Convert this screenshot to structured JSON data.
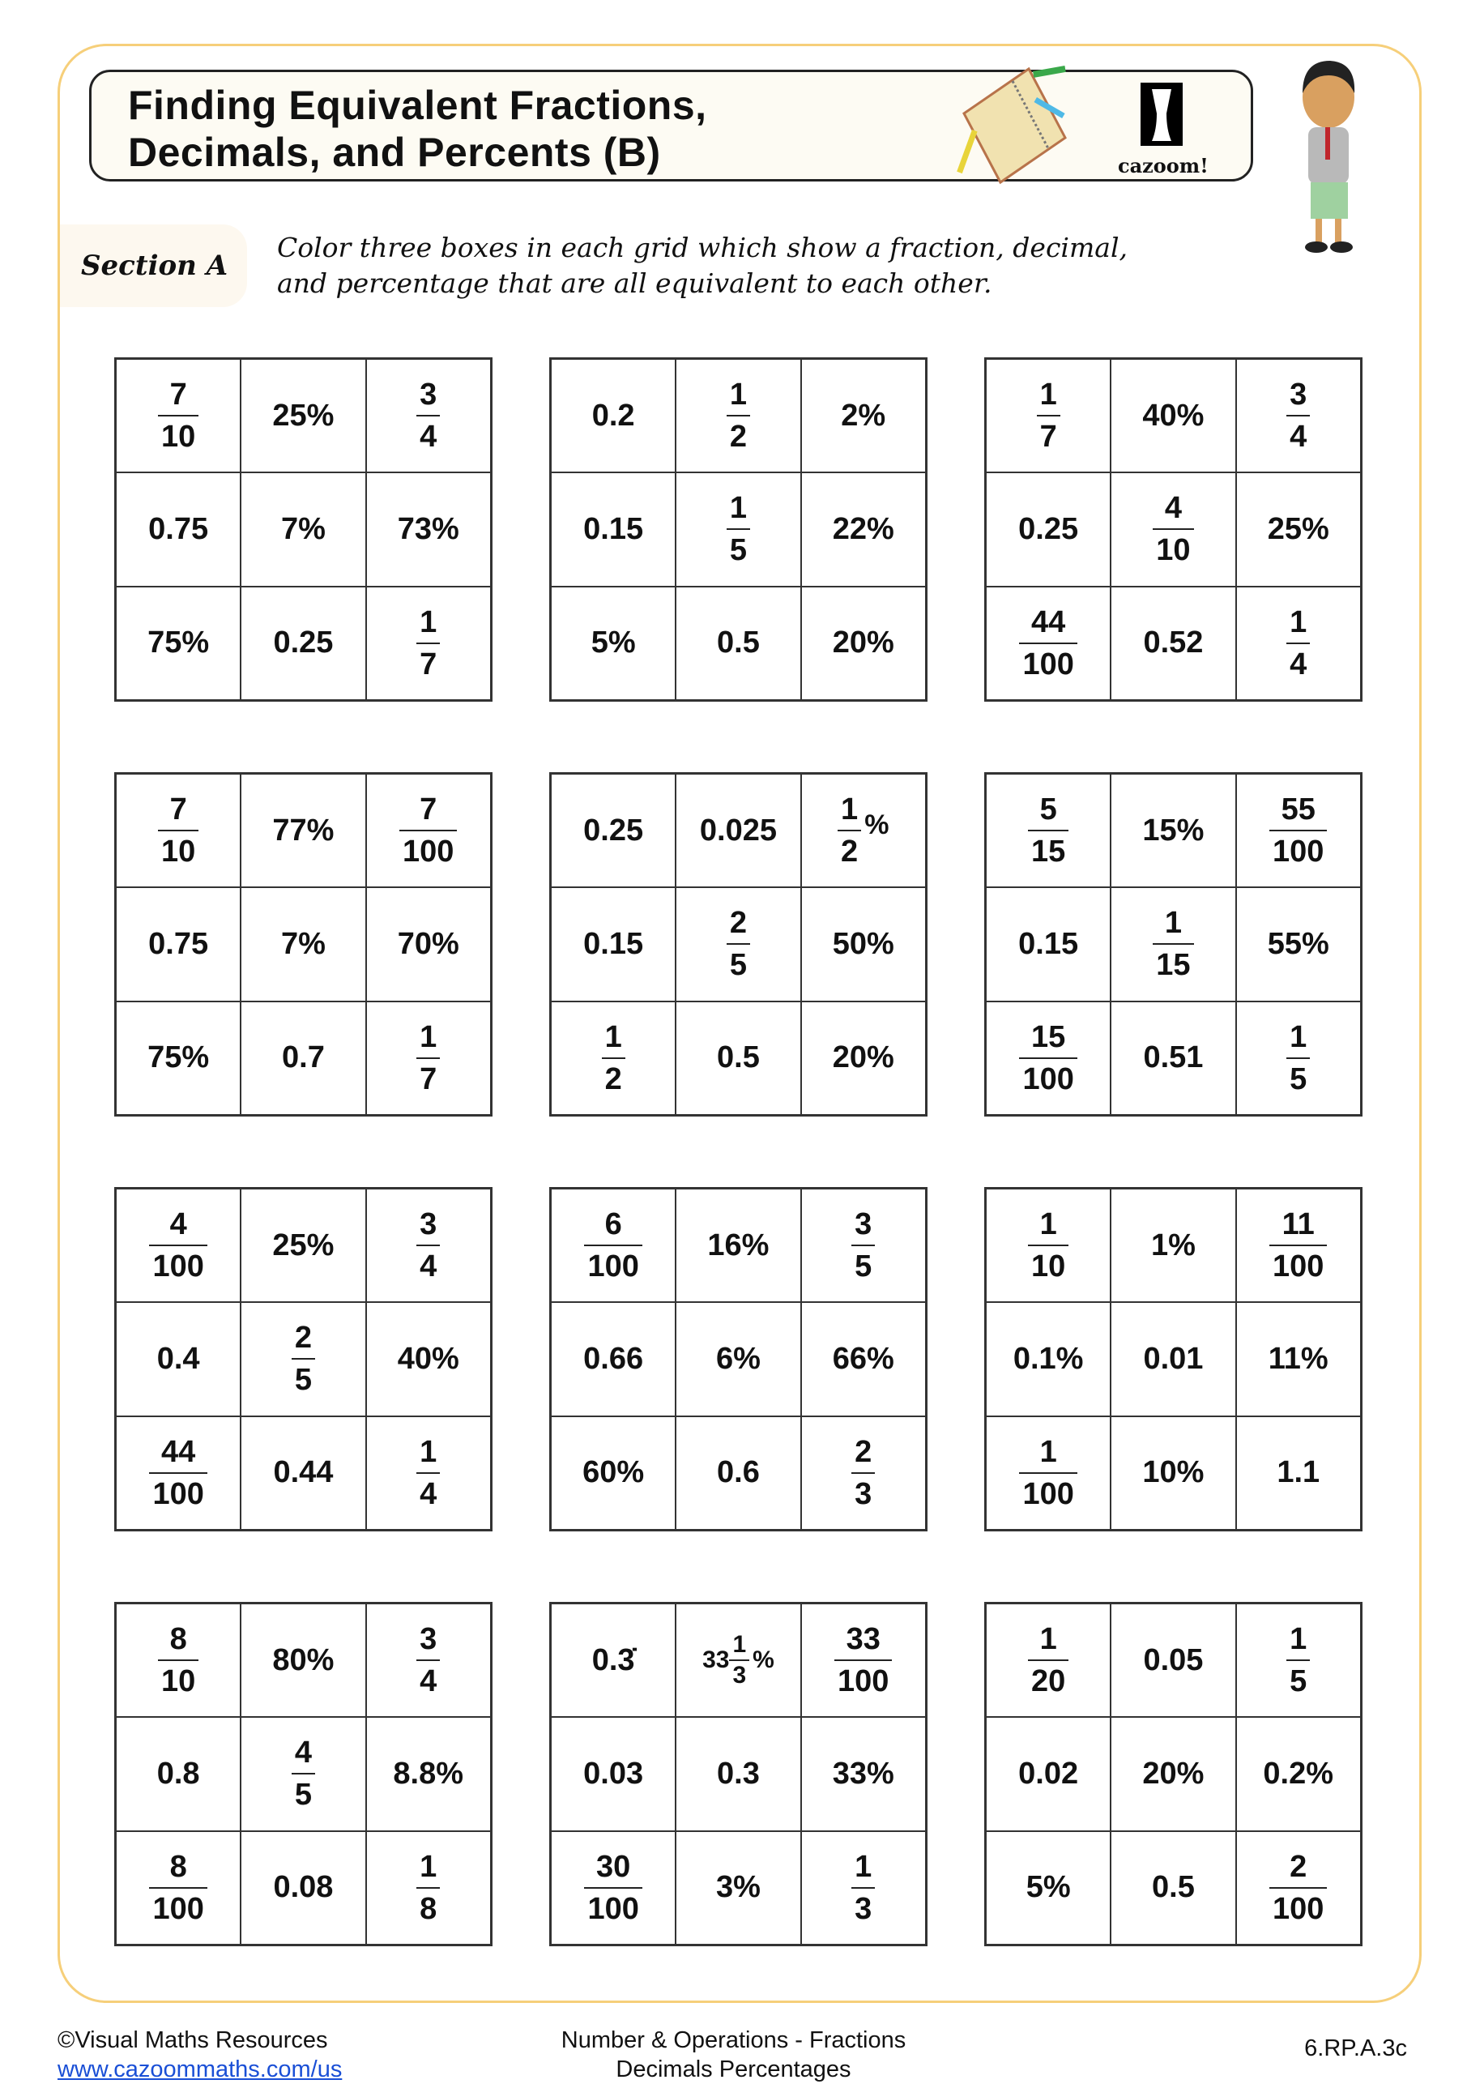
{
  "header": {
    "title_line1": "Finding Equivalent Fractions,",
    "title_line2": "Decimals, and Percents (B)",
    "logo_text": "cazoom!"
  },
  "section": {
    "label": "Section A",
    "instruction_line1": "Color three boxes in each grid which show a fraction, decimal,",
    "instruction_line2": "and percentage that are all equivalent to each other."
  },
  "grids": [
    [
      {
        "n": "7",
        "d": "10"
      },
      {
        "t": "25%"
      },
      {
        "n": "3",
        "d": "4"
      },
      {
        "t": "0.75"
      },
      {
        "t": "7%"
      },
      {
        "t": "73%"
      },
      {
        "t": "75%"
      },
      {
        "t": "0.25"
      },
      {
        "n": "1",
        "d": "7"
      }
    ],
    [
      {
        "t": "0.2"
      },
      {
        "n": "1",
        "d": "2"
      },
      {
        "t": "2%"
      },
      {
        "t": "0.15"
      },
      {
        "n": "1",
        "d": "5"
      },
      {
        "t": "22%"
      },
      {
        "t": "5%"
      },
      {
        "t": "0.5"
      },
      {
        "t": "20%"
      }
    ],
    [
      {
        "n": "1",
        "d": "7"
      },
      {
        "t": "40%"
      },
      {
        "n": "3",
        "d": "4"
      },
      {
        "t": "0.25"
      },
      {
        "n": "4",
        "d": "10"
      },
      {
        "t": "25%"
      },
      {
        "n": "44",
        "d": "100"
      },
      {
        "t": "0.52"
      },
      {
        "n": "1",
        "d": "4"
      }
    ],
    [
      {
        "n": "7",
        "d": "10"
      },
      {
        "t": "77%"
      },
      {
        "n": "7",
        "d": "100"
      },
      {
        "t": "0.75"
      },
      {
        "t": "7%"
      },
      {
        "t": "70%"
      },
      {
        "t": "75%"
      },
      {
        "t": "0.7"
      },
      {
        "n": "1",
        "d": "7"
      }
    ],
    [
      {
        "t": "0.25"
      },
      {
        "t": "0.025"
      },
      {
        "n": "1",
        "d": "2",
        "s": "%"
      },
      {
        "t": "0.15"
      },
      {
        "n": "2",
        "d": "5"
      },
      {
        "t": "50%"
      },
      {
        "n": "1",
        "d": "2"
      },
      {
        "t": "0.5"
      },
      {
        "t": "20%"
      }
    ],
    [
      {
        "n": "5",
        "d": "15"
      },
      {
        "t": "15%"
      },
      {
        "n": "55",
        "d": "100"
      },
      {
        "t": "0.15"
      },
      {
        "n": "1",
        "d": "15"
      },
      {
        "t": "55%"
      },
      {
        "n": "15",
        "d": "100"
      },
      {
        "t": "0.51"
      },
      {
        "n": "1",
        "d": "5"
      }
    ],
    [
      {
        "n": "4",
        "d": "100"
      },
      {
        "t": "25%"
      },
      {
        "n": "3",
        "d": "4"
      },
      {
        "t": "0.4"
      },
      {
        "n": "2",
        "d": "5"
      },
      {
        "t": "40%"
      },
      {
        "n": "44",
        "d": "100"
      },
      {
        "t": "0.44"
      },
      {
        "n": "1",
        "d": "4"
      }
    ],
    [
      {
        "n": "6",
        "d": "100"
      },
      {
        "t": "16%"
      },
      {
        "n": "3",
        "d": "5"
      },
      {
        "t": "0.66"
      },
      {
        "t": "6%"
      },
      {
        "t": "66%"
      },
      {
        "t": "60%"
      },
      {
        "t": "0.6"
      },
      {
        "n": "2",
        "d": "3"
      }
    ],
    [
      {
        "n": "1",
        "d": "10"
      },
      {
        "t": "1%"
      },
      {
        "n": "11",
        "d": "100"
      },
      {
        "t": "0.1%"
      },
      {
        "t": "0.01"
      },
      {
        "t": "11%"
      },
      {
        "n": "1",
        "d": "100"
      },
      {
        "t": "10%"
      },
      {
        "t": "1.1"
      }
    ],
    [
      {
        "n": "8",
        "d": "10"
      },
      {
        "t": "80%"
      },
      {
        "n": "3",
        "d": "4"
      },
      {
        "t": "0.8"
      },
      {
        "n": "4",
        "d": "5"
      },
      {
        "t": "8.8%"
      },
      {
        "n": "8",
        "d": "100"
      },
      {
        "t": "0.08"
      },
      {
        "n": "1",
        "d": "8"
      }
    ],
    [
      {
        "t": "0.3̇"
      },
      {
        "w": "33",
        "n": "1",
        "d": "3",
        "s": "%"
      },
      {
        "n": "33",
        "d": "100"
      },
      {
        "t": "0.03"
      },
      {
        "t": "0.3"
      },
      {
        "t": "33%"
      },
      {
        "n": "30",
        "d": "100"
      },
      {
        "t": "3%"
      },
      {
        "n": "1",
        "d": "3"
      }
    ],
    [
      {
        "n": "1",
        "d": "20"
      },
      {
        "t": "0.05"
      },
      {
        "n": "1",
        "d": "5"
      },
      {
        "t": "0.02"
      },
      {
        "t": "20%"
      },
      {
        "t": "0.2%"
      },
      {
        "t": "5%"
      },
      {
        "t": "0.5"
      },
      {
        "n": "2",
        "d": "100"
      }
    ]
  ],
  "footer": {
    "copyright": "©Visual Maths Resources",
    "url": "www.cazoommaths.com/us",
    "topic_line1": "Number & Operations - Fractions",
    "topic_line2": "Decimals Percentages",
    "standard": "6.RP.A.3c"
  },
  "colors": {
    "frame": "#f6cf7a",
    "link": "#1a4fd6"
  }
}
